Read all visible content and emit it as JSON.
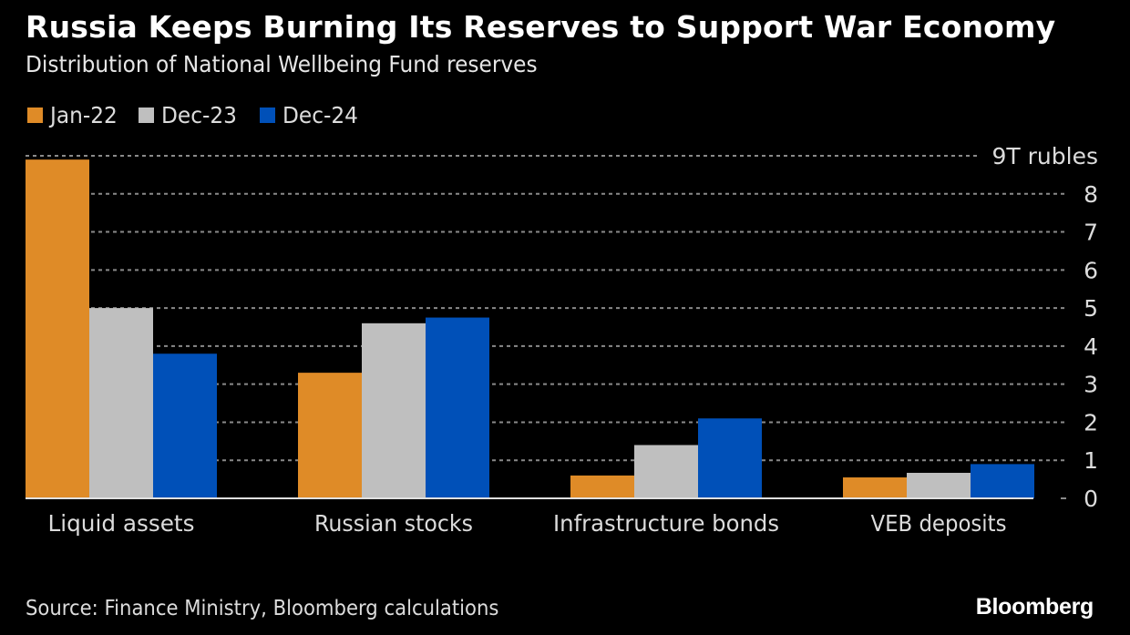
{
  "header": {
    "title": "Russia Keeps Burning Its Reserves to Support War Economy",
    "subtitle": "Distribution of National Wellbeing Fund reserves"
  },
  "footer": {
    "source": "Source: Finance Ministry, Bloomberg calculations",
    "logo": "Bloomberg"
  },
  "colors": {
    "background": "#000000",
    "gridline": "#8a8a8a",
    "baseline": "#e0e0e0",
    "tick_text": "#dcdcdc"
  },
  "chart_data": {
    "type": "bar",
    "title": "Russia Keeps Burning Its Reserves to Support War Economy",
    "subtitle": "Distribution of National Wellbeing Fund reserves",
    "xlabel": "",
    "ylabel": "T rubles",
    "y_unit_label": "9T rubles",
    "ylim": [
      0,
      9
    ],
    "yticks": [
      0,
      1,
      2,
      3,
      4,
      5,
      6,
      7,
      8,
      9
    ],
    "ytick_labels": [
      "0",
      "1",
      "2",
      "3",
      "4",
      "5",
      "6",
      "7",
      "8",
      "9T rubles"
    ],
    "y_axis_side": "right",
    "grid": true,
    "legend_position": "top-left",
    "categories": [
      "Liquid assets",
      "Russian stocks",
      "Infrastructure bonds",
      "VEB deposits"
    ],
    "series": [
      {
        "name": "Jan-22",
        "color": "#df8b27",
        "values": [
          8.9,
          3.3,
          0.6,
          0.55
        ]
      },
      {
        "name": "Dec-23",
        "color": "#bfbfbf",
        "values": [
          5.0,
          4.6,
          1.4,
          0.67
        ]
      },
      {
        "name": "Dec-24",
        "color": "#0050b8",
        "values": [
          3.8,
          4.75,
          2.1,
          0.9
        ]
      }
    ],
    "source": "Source: Finance Ministry, Bloomberg calculations"
  }
}
